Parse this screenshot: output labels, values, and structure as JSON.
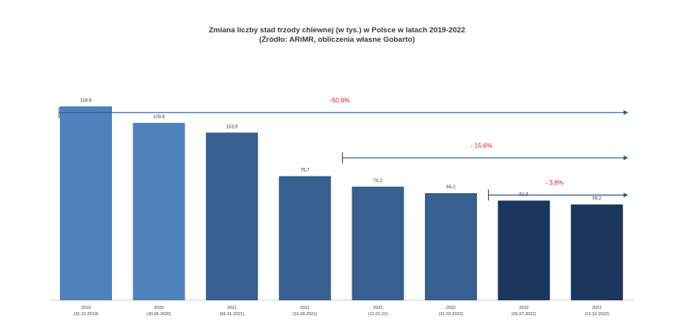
{
  "chart_data": {
    "type": "bar",
    "title": "Zmiana liczby stad trzody chlewnej (w tys.) w Polsce w latach 2019-2022",
    "subtitle": "(Źródło: ARiMR, obliczenia własne Gobarto)",
    "xlabel": "",
    "ylabel": "",
    "ylim": [
      0,
      125
    ],
    "grid": false,
    "categories": [
      {
        "year": "2019",
        "date": "(31.12.2019)"
      },
      {
        "year": "2020",
        "date": "(30.06.2020)"
      },
      {
        "year": "2021",
        "date": "(06.01.2021)"
      },
      {
        "year": "2021",
        "date": "(16.08.2021)"
      },
      {
        "year": "2022",
        "date": "(12.01.22)"
      },
      {
        "year": "2022",
        "date": "(31.03.2022)"
      },
      {
        "year": "2022",
        "date": "(05.07.2022)"
      },
      {
        "year": "2022",
        "date": "(10.10.2022)"
      }
    ],
    "values": [
      119.8,
      109.6,
      103.6,
      76.7,
      70.2,
      66.2,
      61.6,
      59.2
    ],
    "value_labels": [
      "119,8",
      "109,6",
      "103,6",
      "76,7",
      "70,2",
      "66,2",
      "61,6",
      "59,2"
    ],
    "bar_colors": [
      "#4f81bd",
      "#4f81bd",
      "#375f8f",
      "#375f8f",
      "#375f8f",
      "#375f8f",
      "#1b365d",
      "#1b365d"
    ],
    "annotations": [
      {
        "label": "-50,6%",
        "from_index": 0,
        "level": 116
      },
      {
        "label": "- 15,6%",
        "from_index": 4,
        "level": 88
      },
      {
        "label": "- 3,8%",
        "from_index": 6,
        "level": 65
      }
    ],
    "annotation_line_color": "#2e5d8e",
    "annotation_text_color": "#e02020"
  }
}
